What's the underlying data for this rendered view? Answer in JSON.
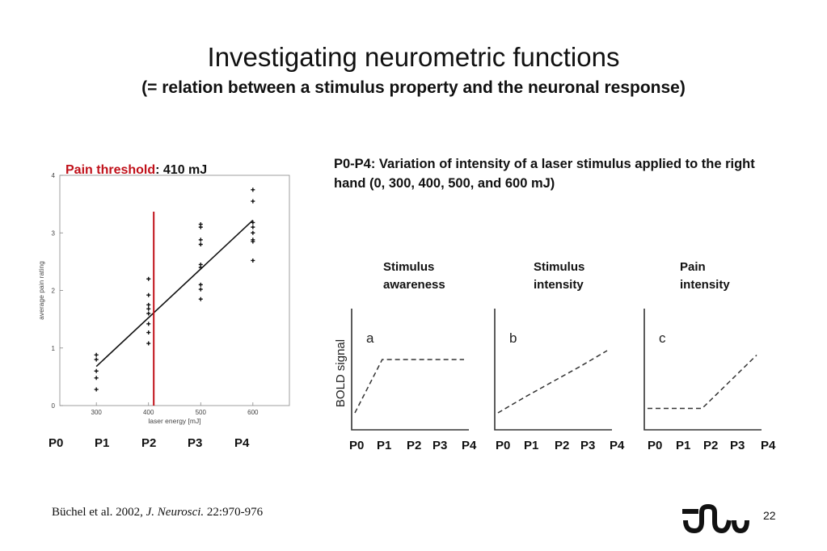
{
  "slide": {
    "title": "Investigating neurometric functions",
    "subtitle": "(= relation between a stimulus property and the neuronal response)",
    "threshold_label": "Pain threshold",
    "threshold_value": ": 410 mJ",
    "description": "P0-P4: Variation of intensity of a laser stimulus applied to the right hand (0, 300, 400, 500, and 600 mJ)",
    "citation_authors": "Büchel et al. 2002, ",
    "citation_journal": "J. Neurosci.",
    "citation_pages": " 22:970-976",
    "page_number": "22",
    "left_p_labels": [
      "P0",
      "P1",
      "P2",
      "P3",
      "P4"
    ],
    "panels": [
      {
        "heading": "Stimulus\nawareness",
        "letter": "a",
        "p_labels": [
          "P0",
          "P1",
          "P2",
          "P3",
          "P4"
        ]
      },
      {
        "heading": "Stimulus\nintensity",
        "letter": "b",
        "p_labels": [
          "P0",
          "P1",
          "P2",
          "P3",
          "P4"
        ]
      },
      {
        "heading": "Pain\nintensity",
        "letter": "c",
        "p_labels": [
          "P0",
          "P1",
          "P2",
          "P3",
          "P4"
        ]
      }
    ],
    "bold_axis_label": "BOLD signal"
  },
  "chart_data": [
    {
      "type": "scatter",
      "xlabel": "laser energy [mJ]",
      "ylabel": "average pain rating",
      "xticks": [
        300,
        400,
        500,
        600
      ],
      "yticks": [
        0,
        1,
        2,
        3,
        4
      ],
      "xlim": [
        230,
        670
      ],
      "ylim": [
        0,
        4
      ],
      "points": [
        [
          300,
          0.88
        ],
        [
          300,
          0.8
        ],
        [
          300,
          0.6
        ],
        [
          300,
          0.48
        ],
        [
          300,
          0.28
        ],
        [
          400,
          2.2
        ],
        [
          400,
          1.92
        ],
        [
          400,
          1.75
        ],
        [
          400,
          1.68
        ],
        [
          400,
          1.6
        ],
        [
          400,
          1.42
        ],
        [
          400,
          1.27
        ],
        [
          400,
          1.08
        ],
        [
          500,
          3.15
        ],
        [
          500,
          3.1
        ],
        [
          500,
          2.88
        ],
        [
          500,
          2.8
        ],
        [
          500,
          2.45
        ],
        [
          500,
          2.4
        ],
        [
          500,
          2.1
        ],
        [
          500,
          2.02
        ],
        [
          500,
          1.85
        ],
        [
          600,
          3.75
        ],
        [
          600,
          3.55
        ],
        [
          600,
          3.18
        ],
        [
          600,
          3.1
        ],
        [
          600,
          3.0
        ],
        [
          600,
          2.88
        ],
        [
          600,
          2.85
        ],
        [
          600,
          2.52
        ]
      ],
      "fit_line": [
        [
          300,
          0.68
        ],
        [
          600,
          3.22
        ]
      ],
      "threshold_x": 410,
      "threshold_color": "#c0111a"
    },
    {
      "type": "line",
      "x": [
        "P0",
        "P1",
        "P2",
        "P3",
        "P4"
      ],
      "series": [
        {
          "values": [
            0.1,
            0.7,
            0.7,
            0.7,
            0.7
          ]
        }
      ],
      "style": "dashed"
    },
    {
      "type": "line",
      "x": [
        "P0",
        "P1",
        "P2",
        "P3",
        "P4"
      ],
      "series": [
        {
          "values": [
            0.1,
            0.28,
            0.45,
            0.62,
            0.8
          ]
        }
      ],
      "style": "dashed"
    },
    {
      "type": "line",
      "x": [
        "P0",
        "P1",
        "P2",
        "P3",
        "P4"
      ],
      "series": [
        {
          "values": [
            0.15,
            0.15,
            0.15,
            0.45,
            0.75
          ]
        }
      ],
      "style": "dashed"
    }
  ]
}
